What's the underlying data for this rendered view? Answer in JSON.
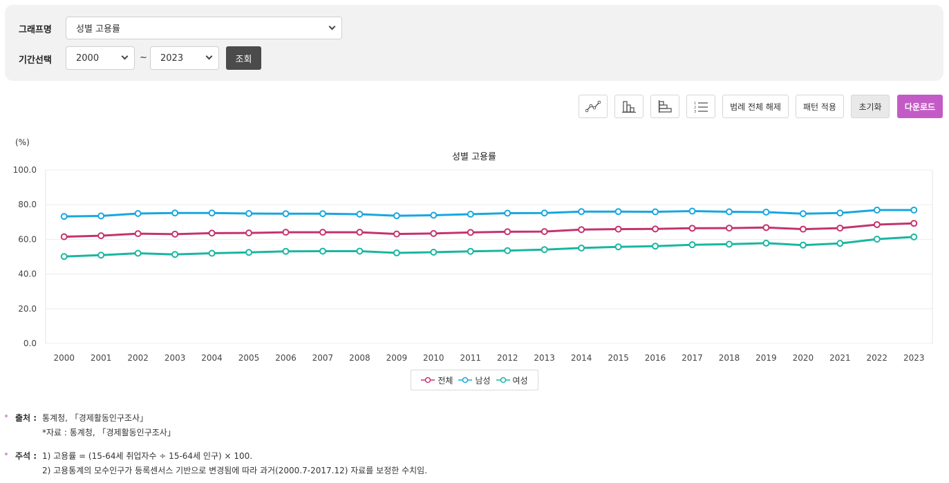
{
  "filter": {
    "graph_label": "그래프명",
    "graph_value": "성별 고용률",
    "period_label": "기간선택",
    "start_year": "2000",
    "tilde": "~",
    "end_year": "2023",
    "search_button": "조회"
  },
  "toolbar": {
    "icons": [
      "line-chart-icon",
      "bar-chart-icon",
      "horizontal-bar-chart-icon",
      "table-list-icon"
    ],
    "legend_clear": "범례 전체 해제",
    "pattern": "패턴 적용",
    "reset": "초기화",
    "download": "다운로드"
  },
  "colors": {
    "total": "#c4336e",
    "male": "#17a6e0",
    "female": "#19b6a1",
    "accent": "#c35bc6",
    "dark_button": "#4b4b4b"
  },
  "chart_data": {
    "type": "line",
    "title": "성별 고용률",
    "ylabel": "(%)",
    "xlabel": "",
    "ylim": [
      0,
      100
    ],
    "yticks": [
      "0.0",
      "20.0",
      "40.0",
      "60.0",
      "80.0",
      "100.0"
    ],
    "grid": true,
    "legend_position": "bottom",
    "categories": [
      "2000",
      "2001",
      "2002",
      "2003",
      "2004",
      "2005",
      "2006",
      "2007",
      "2008",
      "2009",
      "2010",
      "2011",
      "2012",
      "2013",
      "2014",
      "2015",
      "2016",
      "2017",
      "2018",
      "2019",
      "2020",
      "2021",
      "2022",
      "2023"
    ],
    "series": [
      {
        "name": "전체",
        "values": [
          61.5,
          62.1,
          63.3,
          63.0,
          63.6,
          63.7,
          64.1,
          64.1,
          64.1,
          63.1,
          63.4,
          64.0,
          64.4,
          64.5,
          65.6,
          65.9,
          66.0,
          66.4,
          66.5,
          66.8,
          65.9,
          66.5,
          68.5,
          69.2
        ]
      },
      {
        "name": "남성",
        "values": [
          73.2,
          73.5,
          74.9,
          75.2,
          75.2,
          74.9,
          74.8,
          74.8,
          74.5,
          73.6,
          73.9,
          74.5,
          75.1,
          75.2,
          76.0,
          76.0,
          75.9,
          76.3,
          75.9,
          75.7,
          74.8,
          75.2,
          76.9,
          76.9
        ]
      },
      {
        "name": "여성",
        "values": [
          50.1,
          50.9,
          52.0,
          51.3,
          52.0,
          52.5,
          53.1,
          53.2,
          53.2,
          52.2,
          52.6,
          53.1,
          53.5,
          54.1,
          55.0,
          55.7,
          56.1,
          56.9,
          57.2,
          57.8,
          56.7,
          57.7,
          60.1,
          61.4
        ]
      }
    ]
  },
  "notes": {
    "source_label": "출처 :",
    "source_text": "통계청, 「경제활동인구조사」",
    "source_sub": "*자료 : 통계청, 「경제활동인구조사」",
    "comment_label": "주석 :",
    "comment_1": "1) 고용률 = (15-64세 취업자수 ÷ 15-64세 인구) × 100.",
    "comment_2": "2) 고용통계의 모수인구가 등록센서스 기반으로 변경됨에 따라 과거(2000.7-2017.12) 자료를 보정한 수치임."
  }
}
